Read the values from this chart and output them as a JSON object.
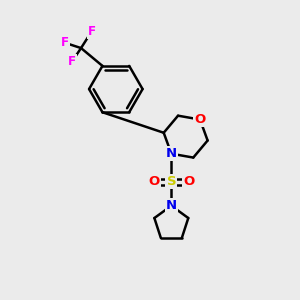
{
  "background_color": "#ebebeb",
  "bond_color": "#000000",
  "bond_width": 1.8,
  "atom_colors": {
    "O": "#ff0000",
    "N": "#0000ee",
    "S": "#cccc00",
    "F": "#ff00ff",
    "C": "#000000"
  },
  "font_size": 9.5,
  "fig_width": 3.0,
  "fig_height": 3.0,
  "dpi": 100
}
